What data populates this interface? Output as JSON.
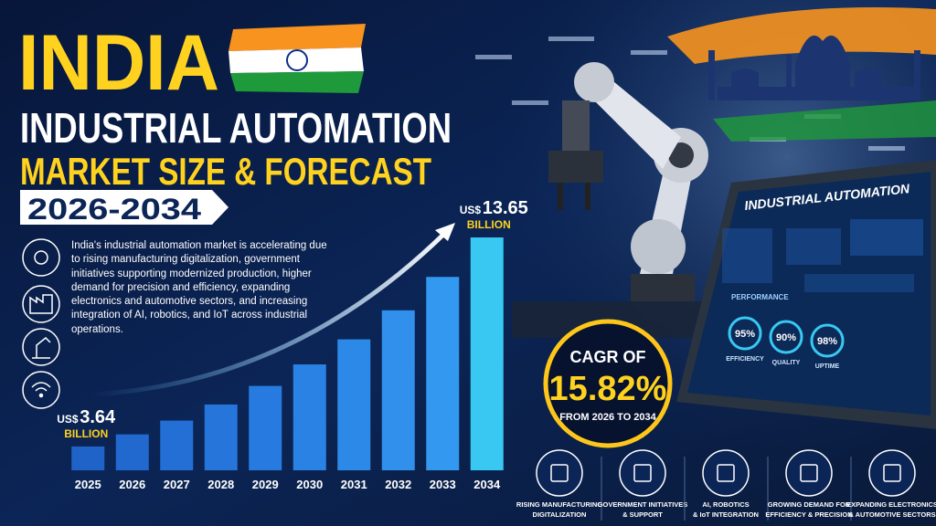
{
  "chart_data": {
    "type": "bar",
    "title": "INDIA",
    "subtitle": "INDUSTRIAL AUTOMATION",
    "heading": "MARKET SIZE & FORECAST",
    "period": "2026-2034",
    "description": "India's industrial automation market is accelerating due to rising manufacturing digitalization, government initiatives supporting modernized production, higher demand for precision and efficiency, expanding electronics and automotive sectors, and increasing integration of AI, robotics, and IoT across industrial operations.",
    "categories": [
      "2025",
      "2026",
      "2027",
      "2028",
      "2029",
      "2030",
      "2031",
      "2032",
      "2033",
      "2034"
    ],
    "values": [
      3.64,
      4.22,
      4.88,
      5.65,
      6.54,
      7.57,
      8.77,
      10.16,
      11.76,
      13.65
    ],
    "colors": [
      "#1f63c9",
      "#2169cf",
      "#236fd5",
      "#2575db",
      "#277be0",
      "#2a82e4",
      "#2d89e8",
      "#3090ec",
      "#3398ef",
      "#38c8f2"
    ],
    "ylim": [
      2.5,
      14
    ],
    "unit_prefix": "US$",
    "unit_suffix": "BILLION",
    "cagr": {
      "label": "CAGR OF",
      "value": "15.82%",
      "period": "FROM 2026 TO 2034"
    },
    "features": [
      {
        "lines": [
          "RISING MANUFACTURING",
          "DIGITALIZATION"
        ]
      },
      {
        "lines": [
          "GOVERNMENT INITIATIVES",
          "& SUPPORT"
        ]
      },
      {
        "lines": [
          "AI, ROBOTICS",
          "& IoT INTEGRATION"
        ]
      },
      {
        "lines": [
          "GROWING DEMAND FOR",
          "EFFICIENCY & PRECISION"
        ]
      },
      {
        "lines": [
          "EXPANDING ELECTRONICS",
          "& AUTOMOTIVE SECTORS"
        ]
      }
    ],
    "dashboard": {
      "title": "INDUSTRIAL AUTOMATION",
      "section": "PERFORMANCE",
      "gauges": [
        {
          "value": "95%",
          "label": "EFFICIENCY"
        },
        {
          "value": "90%",
          "label": "QUALITY"
        },
        {
          "value": "98%",
          "label": "UPTIME"
        }
      ]
    }
  }
}
